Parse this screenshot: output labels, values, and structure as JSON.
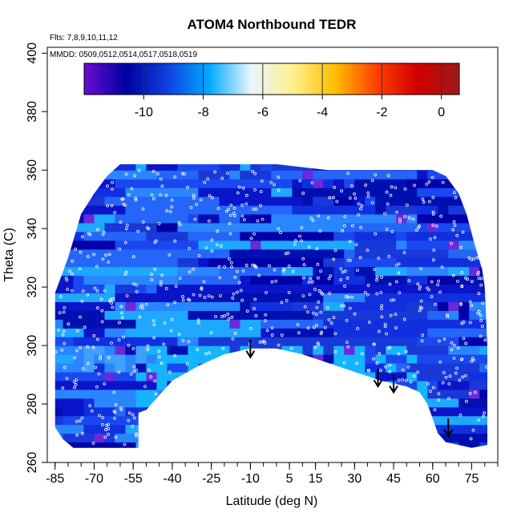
{
  "chart_data": {
    "type": "heatmap",
    "title": "ATOM4 Northbound TEDR",
    "note_flights": "Flts: 7,8,9,10,11,12",
    "note_dates": "MMDD: 0509,0512,0514,0517,0518,0519",
    "xlabel": "Latitude (deg N)",
    "ylabel": "Theta (C)",
    "xlim": [
      -88,
      85
    ],
    "ylim": [
      260,
      402
    ],
    "x_ticks": [
      -85,
      -70,
      -55,
      -40,
      -25,
      -10,
      5,
      15,
      30,
      45,
      60,
      75
    ],
    "y_ticks": [
      260,
      280,
      300,
      320,
      340,
      360,
      380,
      400
    ],
    "colorbar": {
      "range": [
        -12,
        0.6
      ],
      "ticks": [
        -10,
        -8,
        -6,
        -4,
        -2,
        0
      ],
      "colors": [
        "#6a0dd0",
        "#0000a0",
        "#1040e0",
        "#00aaff",
        "#e8f6ff",
        "#fff090",
        "#ffc000",
        "#ff4000",
        "#d00000",
        "#a01818"
      ]
    },
    "arrows": [
      {
        "lat": -10,
        "theta": 296
      },
      {
        "lat": 39,
        "theta": 286
      },
      {
        "lat": 45,
        "theta": 284
      },
      {
        "lat": 66,
        "theta": 269
      }
    ],
    "boundary_top": [
      [
        -85,
        318
      ],
      [
        -80,
        330
      ],
      [
        -75,
        345
      ],
      [
        -70,
        352
      ],
      [
        -65,
        358
      ],
      [
        -60,
        362
      ],
      [
        -50,
        362
      ],
      [
        -30,
        362
      ],
      [
        0,
        362
      ],
      [
        20,
        360
      ],
      [
        40,
        360
      ],
      [
        60,
        360
      ],
      [
        65,
        358
      ],
      [
        70,
        352
      ],
      [
        73,
        345
      ],
      [
        76,
        335
      ],
      [
        79,
        326
      ],
      [
        80,
        320
      ],
      [
        81,
        300
      ],
      [
        81,
        276
      ]
    ],
    "boundary_bottom": [
      [
        -85,
        272
      ],
      [
        -82,
        268
      ],
      [
        -78,
        265
      ],
      [
        -53,
        265
      ],
      [
        -53,
        277
      ],
      [
        -50,
        278
      ],
      [
        -45,
        283
      ],
      [
        -40,
        288
      ],
      [
        -30,
        293
      ],
      [
        -20,
        297
      ],
      [
        -10,
        299
      ],
      [
        0,
        299
      ],
      [
        10,
        297
      ],
      [
        20,
        294
      ],
      [
        30,
        291
      ],
      [
        40,
        288
      ],
      [
        50,
        286
      ],
      [
        55,
        284
      ],
      [
        58,
        280
      ],
      [
        60,
        275
      ],
      [
        62,
        270
      ],
      [
        65,
        267
      ],
      [
        70,
        266
      ],
      [
        75,
        265
      ],
      [
        81,
        266
      ]
    ]
  }
}
